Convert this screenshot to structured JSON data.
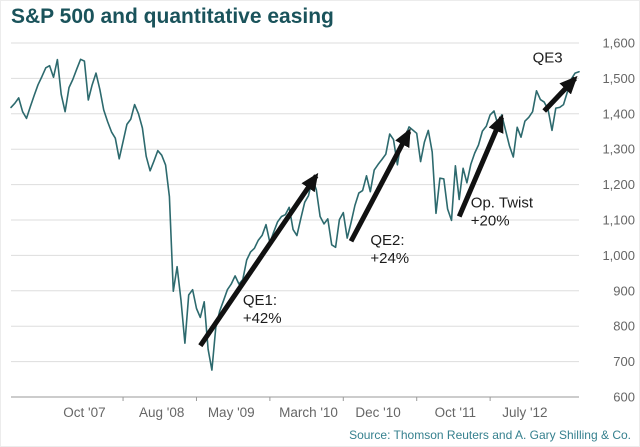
{
  "title": "S&P 500 and quantitative easing",
  "source": "Source: Thomson Reuters and A. Gary Shilling & Co.",
  "colors": {
    "title": "#1a535b",
    "line": "#2d6a6e",
    "grid": "#dddddd",
    "axis": "#9a9a9a",
    "tick_label": "#666666",
    "annotation": "#1c1c1c",
    "arrow": "#111111",
    "source": "#35808e"
  },
  "chart_data": {
    "type": "line",
    "title": "S&P 500 and quantitative easing",
    "xlabel": "",
    "ylabel": "",
    "ylim": [
      600,
      1600
    ],
    "grid": "horizontal",
    "legend": "none",
    "y_ticks": [
      {
        "v": 600,
        "label": "600"
      },
      {
        "v": 700,
        "label": "700"
      },
      {
        "v": 800,
        "label": "800"
      },
      {
        "v": 900,
        "label": "900"
      },
      {
        "v": 1000,
        "label": "1,000"
      },
      {
        "v": 1100,
        "label": "1,100"
      },
      {
        "v": 1200,
        "label": "1,200"
      },
      {
        "v": 1300,
        "label": "1,300"
      },
      {
        "v": 1400,
        "label": "1,400"
      },
      {
        "v": 1500,
        "label": "1,500"
      },
      {
        "v": 1600,
        "label": "1,600"
      }
    ],
    "x_ticks": [
      {
        "label": "Oct '07",
        "i": 19
      },
      {
        "label": "Aug '08",
        "i": 39
      },
      {
        "label": "May '09",
        "i": 57
      },
      {
        "label": "March '10",
        "i": 77
      },
      {
        "label": "Dec '10",
        "i": 95
      },
      {
        "label": "Oct '11",
        "i": 115
      },
      {
        "label": "July '12",
        "i": 133
      }
    ],
    "series": [
      {
        "name": "S&P 500",
        "cadence": "semi-monthly",
        "start": "Jan 2007",
        "end": "Feb 2013",
        "values": [
          1418,
          1430,
          1445,
          1406,
          1387,
          1420,
          1452,
          1482,
          1505,
          1530,
          1536,
          1503,
          1553,
          1455,
          1406,
          1474,
          1497,
          1526,
          1554,
          1549,
          1439,
          1481,
          1515,
          1468,
          1411,
          1378,
          1349,
          1331,
          1273,
          1322,
          1370,
          1385,
          1426,
          1400,
          1360,
          1280,
          1239,
          1267,
          1296,
          1283,
          1255,
          1166,
          899,
          968,
          873,
          752,
          888,
          903,
          850,
          825,
          869,
          735,
          676,
          797,
          843,
          872,
          903,
          919,
          942,
          919,
          932,
          987,
          1010,
          1020,
          1043,
          1057,
          1087,
          1036,
          1066,
          1095,
          1110,
          1115,
          1136,
          1073,
          1056,
          1104,
          1150,
          1169,
          1217,
          1186,
          1110,
          1089,
          1103,
          1030,
          1023,
          1101,
          1121,
          1049,
          1092,
          1141,
          1176,
          1183,
          1225,
          1180,
          1241,
          1257,
          1271,
          1286,
          1343,
          1327,
          1256,
          1325,
          1332,
          1363,
          1354,
          1345,
          1265,
          1320,
          1353,
          1292,
          1119,
          1218,
          1216,
          1131,
          1099,
          1253,
          1158,
          1246,
          1205,
          1257,
          1289,
          1312,
          1351,
          1365,
          1397,
          1408,
          1369,
          1397,
          1353,
          1310,
          1278,
          1362,
          1334,
          1379,
          1390,
          1406,
          1465,
          1440,
          1433,
          1412,
          1353,
          1416,
          1418,
          1426,
          1462,
          1498,
          1515,
          1519
        ]
      }
    ],
    "annotations": [
      {
        "name": "QE1",
        "lines": [
          "QE1:",
          "+42%"
        ],
        "label_pos": {
          "i": 60,
          "v": 860
        },
        "arrow": {
          "from": {
            "i": 49,
            "v": 745
          },
          "to": {
            "i": 79,
            "v": 1225
          }
        }
      },
      {
        "name": "QE2",
        "lines": [
          "QE2:",
          "+24%"
        ],
        "label_pos": {
          "i": 93,
          "v": 1030
        },
        "arrow": {
          "from": {
            "i": 88,
            "v": 1040
          },
          "to": {
            "i": 103,
            "v": 1350
          }
        }
      },
      {
        "name": "Op. Twist",
        "lines": [
          "Op. Twist",
          "+20%"
        ],
        "label_pos": {
          "i": 119,
          "v": 1135
        },
        "arrow": {
          "from": {
            "i": 116,
            "v": 1110
          },
          "to": {
            "i": 127,
            "v": 1390
          }
        }
      },
      {
        "name": "QE3",
        "lines": [
          "QE3"
        ],
        "label_pos": {
          "i": 135,
          "v": 1545
        },
        "arrow": {
          "from": {
            "i": 138,
            "v": 1408
          },
          "to": {
            "i": 146,
            "v": 1500
          }
        }
      }
    ]
  }
}
